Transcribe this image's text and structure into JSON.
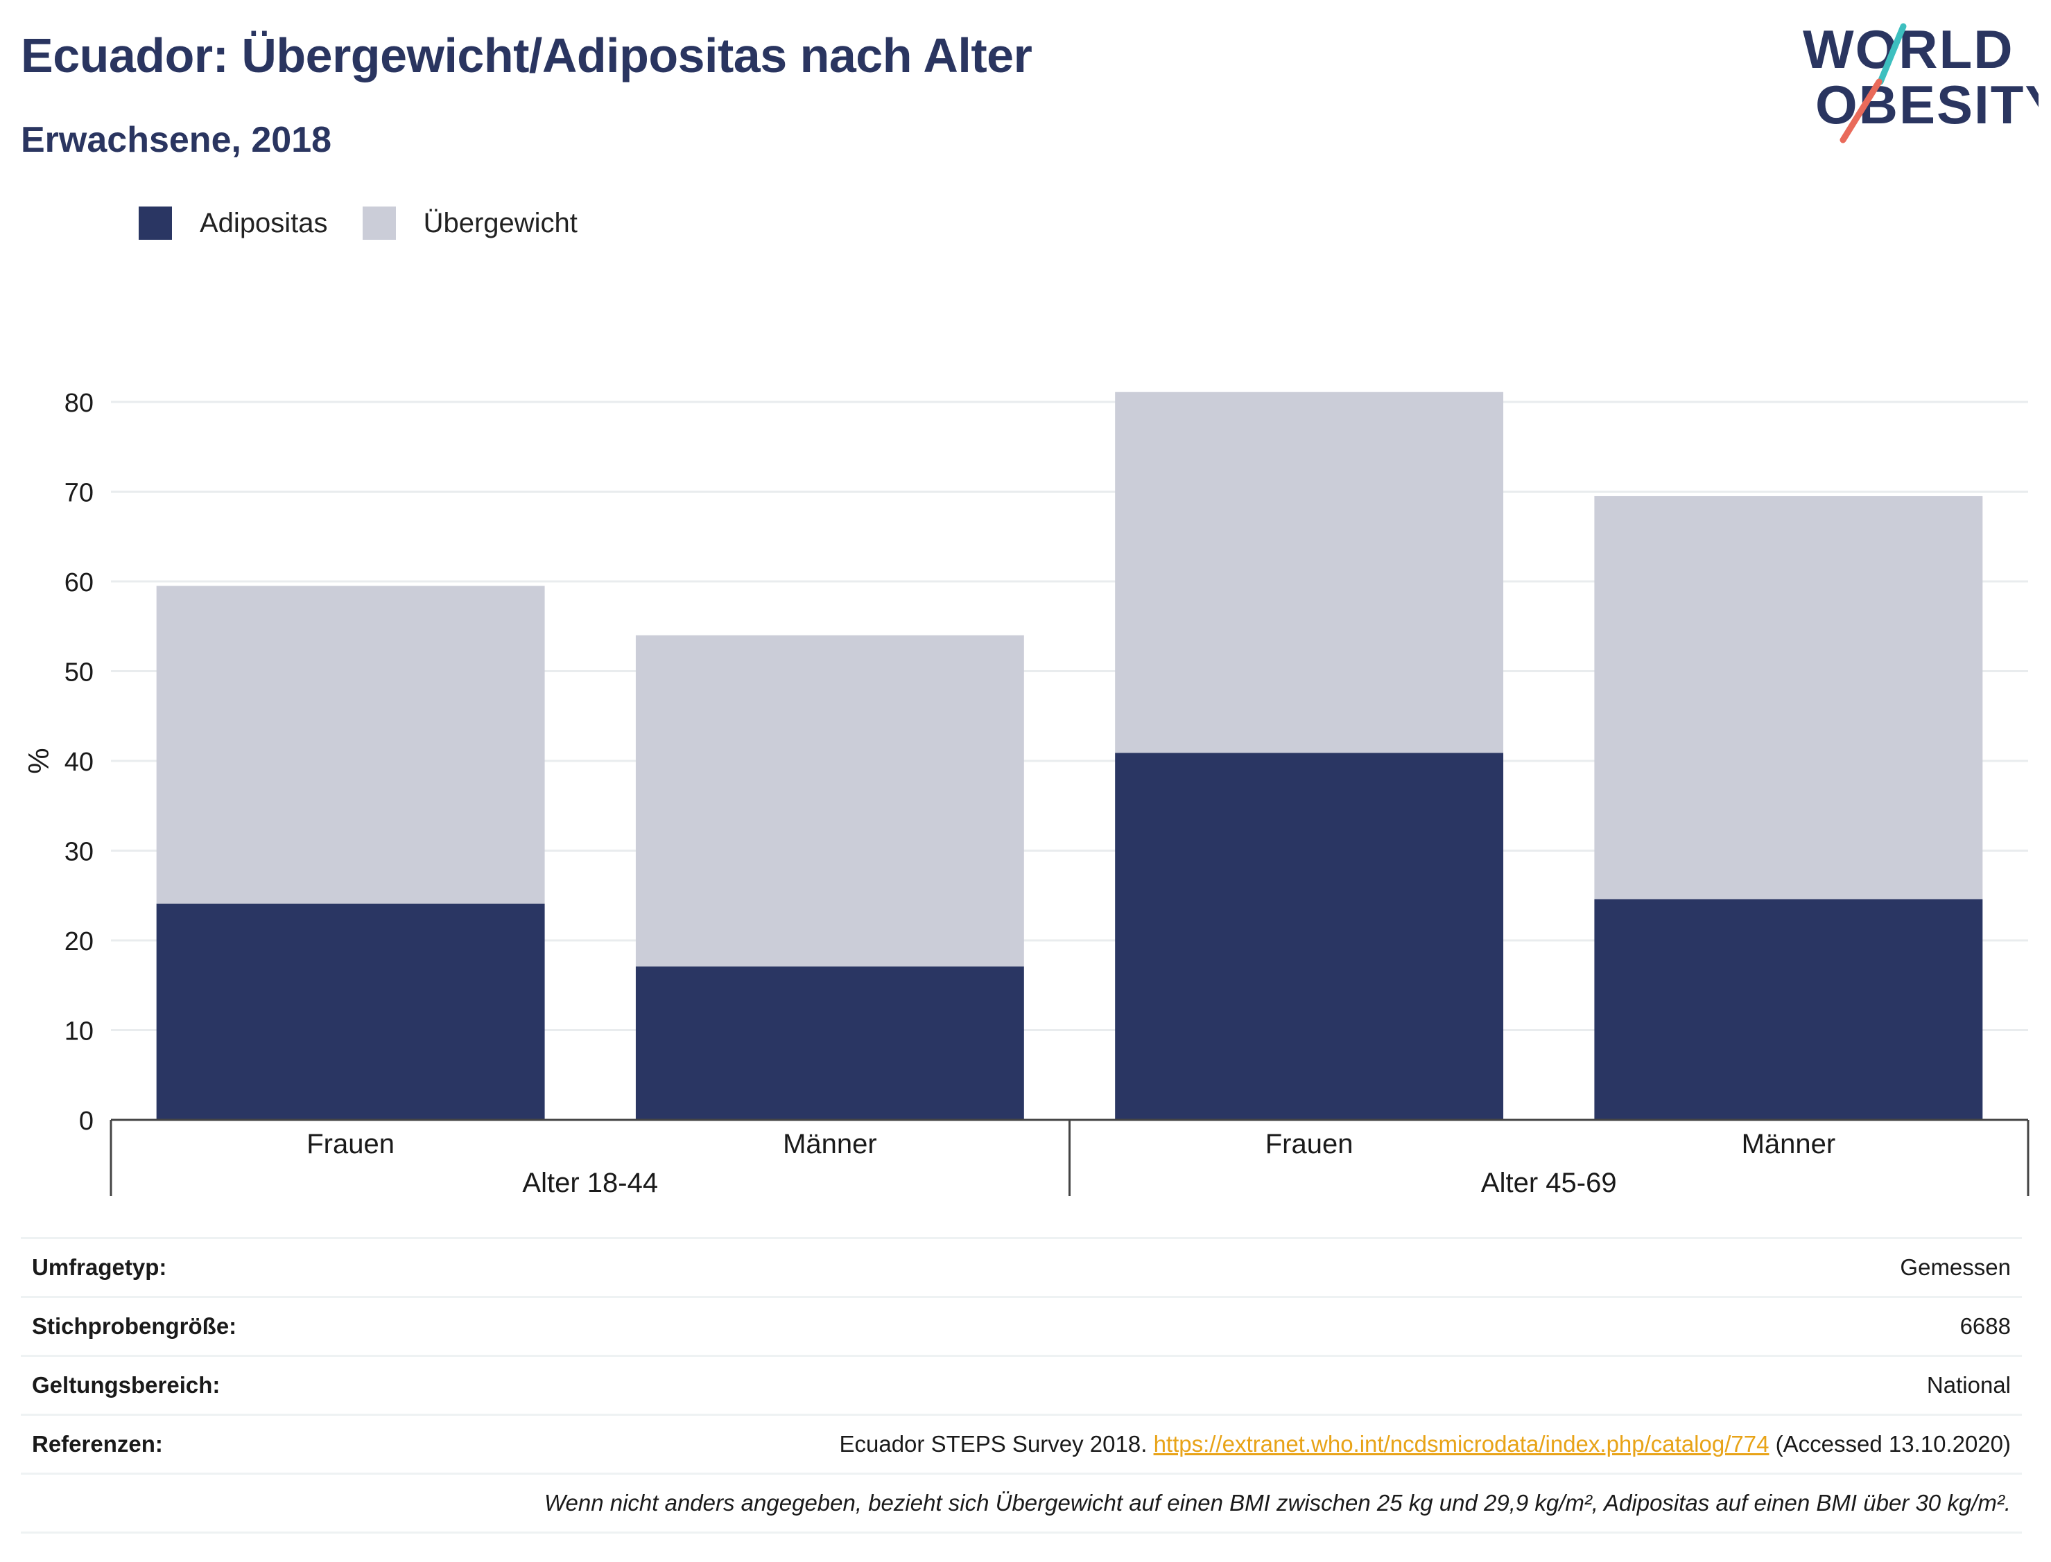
{
  "header": {
    "title": "Ecuador: Übergewicht/Adipositas nach Alter",
    "subtitle": "Erwachsene, 2018"
  },
  "logo": {
    "line1": "WORLD",
    "line2": "OBESITY",
    "text_color": "#2a3560",
    "slash_top_color": "#3dbfbf",
    "slash_bottom_color": "#e96a5a"
  },
  "legend": [
    {
      "label": "Adipositas",
      "color": "#2a3663"
    },
    {
      "label": "Übergewicht",
      "color": "#cbcdd8"
    }
  ],
  "chart_data": {
    "type": "bar",
    "stacked": true,
    "categories": [
      "Frauen",
      "Männer",
      "Frauen",
      "Männer"
    ],
    "groups": [
      {
        "label": "Alter 18-44",
        "categories": [
          "Frauen",
          "Männer"
        ]
      },
      {
        "label": "Alter 45-69",
        "categories": [
          "Frauen",
          "Männer"
        ]
      }
    ],
    "series": [
      {
        "name": "Adipositas",
        "color": "#2a3663",
        "values": [
          24.1,
          17.1,
          40.9,
          24.6
        ]
      },
      {
        "name": "Übergewicht",
        "color": "#cbcdd8",
        "values": [
          35.4,
          36.9,
          40.2,
          44.9
        ]
      }
    ],
    "totals": [
      59.5,
      54.0,
      81.1,
      69.5
    ],
    "ylabel": "%",
    "ylim": [
      0,
      80
    ],
    "yticks": [
      0,
      10,
      20,
      30,
      40,
      50,
      60,
      70,
      80
    ],
    "grid": true,
    "legend_position": "top-left"
  },
  "info": {
    "survey_type_label": "Umfragetyp:",
    "survey_type_value": "Gemessen",
    "sample_size_label": "Stichprobengröße:",
    "sample_size_value": "6688",
    "scope_label": "Geltungsbereich:",
    "scope_value": "National",
    "references_label": "Referenzen:",
    "references_prefix": "Ecuador STEPS Survey 2018.",
    "references_link": "https://extranet.who.int/ncdsmicrodata/index.php/catalog/774",
    "references_suffix": "(Accessed 13.10.2020)",
    "note": "Wenn nicht anders angegeben, bezieht sich Übergewicht auf einen BMI zwischen 25 kg und 29,9 kg/m², Adipositas auf einen BMI über 30 kg/m²."
  }
}
